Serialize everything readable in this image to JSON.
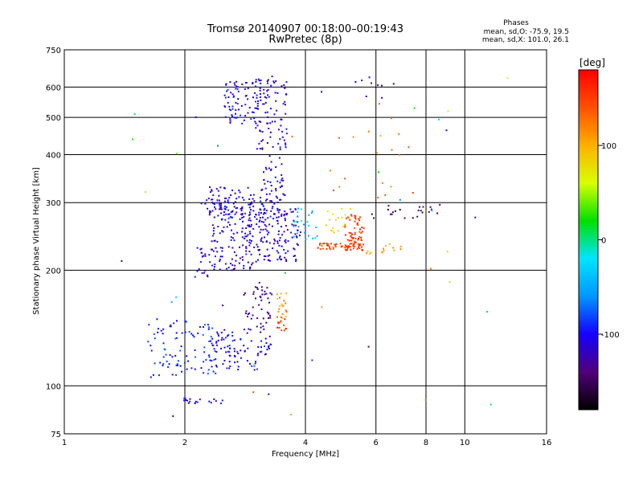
{
  "chart_data": {
    "type": "scatter",
    "title": "Tromsø 20140907 00:18:00–00:19:43",
    "subtitle": "RwPretec (8p)",
    "xlabel": "Frequency [MHz]",
    "ylabel": "Stationary phase Virtual Height [km]",
    "x_scale": "log",
    "y_scale": "log",
    "xlim": [
      1,
      16
    ],
    "ylim": [
      75,
      750
    ],
    "x_ticks": [
      1,
      2,
      4,
      6,
      8,
      10,
      16
    ],
    "y_ticks": [
      75,
      100,
      200,
      300,
      400,
      500,
      600,
      750
    ],
    "grid_x": [
      2,
      4,
      6,
      8,
      10
    ],
    "grid_y": [
      100,
      200,
      300,
      400,
      500,
      600
    ],
    "grid": true,
    "stats": {
      "heading": "Phases",
      "line1": "mean, sd,O: -75.9, 19.5",
      "line2": "mean, sd,X: 101.0, 26.1"
    },
    "colorbar": {
      "label": "[deg]",
      "range": [
        -180,
        180
      ],
      "ticks": [
        100,
        0,
        -100
      ],
      "colors": [
        "#000000",
        "#50007a",
        "#1500ff",
        "#0096ff",
        "#00e5ff",
        "#00e000",
        "#d8ff00",
        "#ffb000",
        "#ff5000",
        "#ff0000"
      ]
    },
    "clusters": [
      {
        "x": [
          1.6,
          2.4
        ],
        "y": [
          105,
          150
        ],
        "phase": -90,
        "n": 90
      },
      {
        "x": [
          2.3,
          3.1
        ],
        "y": [
          110,
          140
        ],
        "phase": -100,
        "n": 80
      },
      {
        "x": [
          1.9,
          2.2
        ],
        "y": [
          90,
          93
        ],
        "phase": -95,
        "n": 14
      },
      {
        "x": [
          2.3,
          2.5
        ],
        "y": [
          90,
          93
        ],
        "phase": -95,
        "n": 6
      },
      {
        "x": [
          2.1,
          2.3
        ],
        "y": [
          190,
          230
        ],
        "phase": -110,
        "n": 18
      },
      {
        "x": [
          2.3,
          3.0
        ],
        "y": [
          200,
          330
        ],
        "phase": -110,
        "n": 170
      },
      {
        "x": [
          2.2,
          3.5
        ],
        "y": [
          270,
          310
        ],
        "phase": -105,
        "n": 90
      },
      {
        "x": [
          2.5,
          3.1
        ],
        "y": [
          480,
          620
        ],
        "phase": -105,
        "n": 80
      },
      {
        "x": [
          3.0,
          3.6
        ],
        "y": [
          410,
          640
        ],
        "phase": -110,
        "n": 90
      },
      {
        "x": [
          3.0,
          3.9
        ],
        "y": [
          210,
          290
        ],
        "phase": -115,
        "n": 130
      },
      {
        "x": [
          3.1,
          3.6
        ],
        "y": [
          300,
          400
        ],
        "phase": -110,
        "n": 40
      },
      {
        "x": [
          2.8,
          3.3
        ],
        "y": [
          140,
          190
        ],
        "phase": -130,
        "n": 50
      },
      {
        "x": [
          3.1,
          3.3
        ],
        "y": [
          120,
          135
        ],
        "phase": -100,
        "n": 15
      },
      {
        "x": [
          3.4,
          3.6
        ],
        "y": [
          150,
          175
        ],
        "phase": 115,
        "n": 20
      },
      {
        "x": [
          3.4,
          3.6
        ],
        "y": [
          138,
          150
        ],
        "phase": 150,
        "n": 12
      },
      {
        "x": [
          3.7,
          4.3
        ],
        "y": [
          240,
          290
        ],
        "phase": -40,
        "n": 25
      },
      {
        "x": [
          4.3,
          5.6
        ],
        "y": [
          225,
          235
        ],
        "phase": 150,
        "n": 60
      },
      {
        "x": [
          5.0,
          5.6
        ],
        "y": [
          235,
          280
        ],
        "phase": 155,
        "n": 50
      },
      {
        "x": [
          4.5,
          5.2
        ],
        "y": [
          250,
          290
        ],
        "phase": 80,
        "n": 18
      },
      {
        "x": [
          5.6,
          7.0
        ],
        "y": [
          220,
          235
        ],
        "phase": 100,
        "n": 15
      },
      {
        "x": [
          5.8,
          8.8
        ],
        "y": [
          270,
          300
        ],
        "phase": -140,
        "n": 22
      },
      {
        "x": [
          4.5,
          7.5
        ],
        "y": [
          300,
          600
        ],
        "phase": 130,
        "n": 18
      },
      {
        "x": [
          4.0,
          7.0
        ],
        "y": [
          560,
          640
        ],
        "phase": -120,
        "n": 10
      },
      {
        "x": [
          1.3,
          13.0
        ],
        "y": [
          80,
          650
        ],
        "phase": 0,
        "n": 40,
        "random_phase": true
      }
    ]
  }
}
